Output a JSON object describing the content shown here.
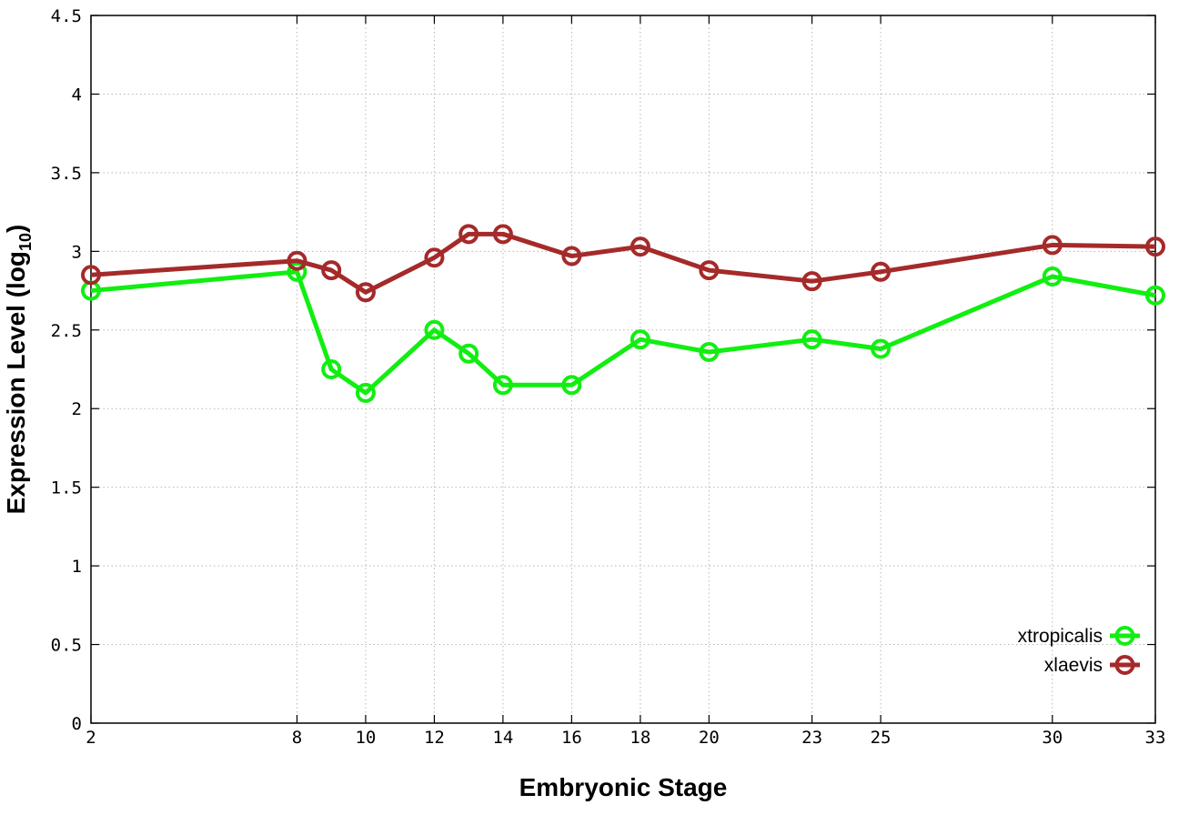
{
  "chart_data": {
    "type": "line",
    "xlabel": "Embryonic Stage",
    "ylabel": "Expression Level (log",
    "ylabel_sub": "10",
    "ylabel_close": ")",
    "x_ticks": [
      2,
      8,
      10,
      12,
      14,
      16,
      18,
      20,
      23,
      25,
      30,
      33
    ],
    "y_ticks": [
      "0",
      "0.5",
      "1",
      "1.5",
      "2",
      "2.5",
      "3",
      "3.5",
      "4",
      "4.5"
    ],
    "ylim": [
      0,
      4.5
    ],
    "xlim": [
      2,
      33
    ],
    "grid": true,
    "legend_position": "bottom-right",
    "series": [
      {
        "name": "xtropicalis",
        "color": "#11ee11",
        "x": [
          2,
          8,
          9,
          10,
          12,
          13,
          14,
          16,
          18,
          20,
          23,
          25,
          30,
          33
        ],
        "y": [
          2.75,
          2.87,
          2.25,
          2.1,
          2.5,
          2.35,
          2.15,
          2.15,
          2.44,
          2.36,
          2.44,
          2.38,
          2.84,
          2.72
        ]
      },
      {
        "name": "xlaevis",
        "color": "#a52a2a",
        "x": [
          2,
          8,
          9,
          10,
          12,
          13,
          14,
          16,
          18,
          20,
          23,
          25,
          30,
          33
        ],
        "y": [
          2.85,
          2.94,
          2.88,
          2.74,
          2.96,
          3.11,
          3.11,
          2.97,
          3.03,
          2.88,
          2.81,
          2.87,
          3.04,
          3.03
        ]
      }
    ]
  }
}
